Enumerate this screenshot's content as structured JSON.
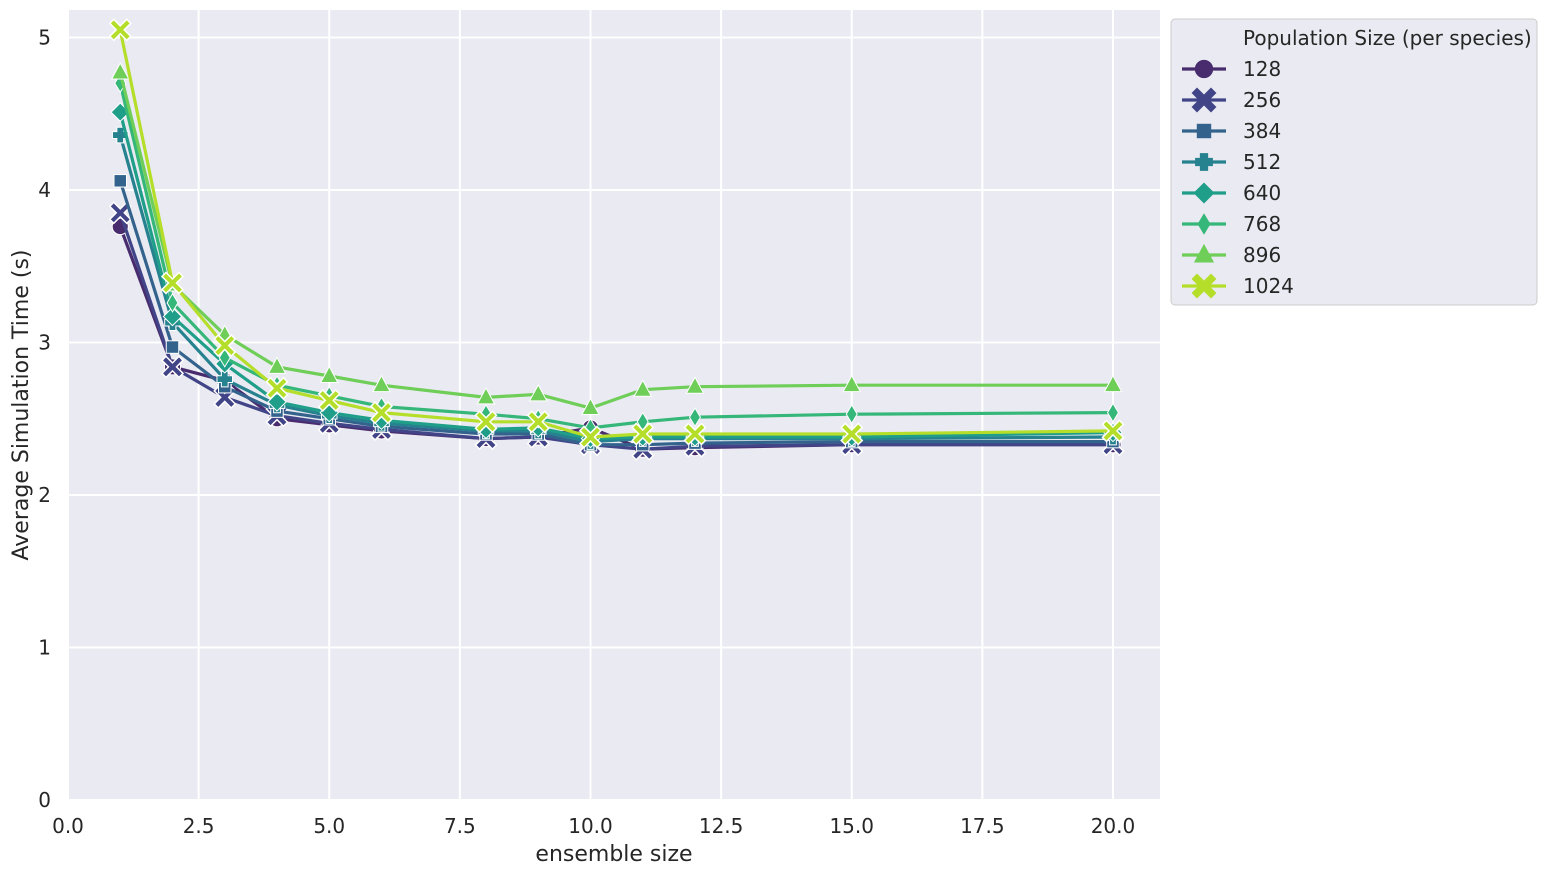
{
  "chart_data": {
    "type": "line",
    "title": "",
    "xlabel": "ensemble size",
    "ylabel": "Average Simulation Time (s)",
    "xlim": [
      0,
      20.9
    ],
    "ylim": [
      0,
      5.18
    ],
    "xticks": [
      0.0,
      2.5,
      5.0,
      7.5,
      10.0,
      12.5,
      15.0,
      17.5,
      20.0
    ],
    "xtick_labels": [
      "0.0",
      "2.5",
      "5.0",
      "7.5",
      "10.0",
      "12.5",
      "15.0",
      "17.5",
      "20.0"
    ],
    "yticks": [
      0,
      1,
      2,
      3,
      4,
      5
    ],
    "ytick_labels": [
      "0",
      "1",
      "2",
      "3",
      "4",
      "5"
    ],
    "grid": true,
    "legend_title": "Population Size (per species)",
    "legend_position": "outside-top-right",
    "x": [
      1,
      2,
      3,
      4,
      5,
      6,
      8,
      9,
      10,
      11,
      12,
      15,
      20
    ],
    "series": [
      {
        "name": "128",
        "color": "#482c6e",
        "marker": "circle",
        "values": [
          3.76,
          2.84,
          2.75,
          2.5,
          2.46,
          2.42,
          2.37,
          2.38,
          2.44,
          2.3,
          2.31,
          2.33,
          2.33
        ]
      },
      {
        "name": "256",
        "color": "#414487",
        "marker": "x",
        "values": [
          3.85,
          2.84,
          2.64,
          2.52,
          2.47,
          2.43,
          2.37,
          2.38,
          2.33,
          2.3,
          2.32,
          2.33,
          2.33
        ]
      },
      {
        "name": "384",
        "color": "#33638d",
        "marker": "square",
        "values": [
          4.06,
          2.97,
          2.71,
          2.55,
          2.5,
          2.45,
          2.4,
          2.4,
          2.33,
          2.33,
          2.34,
          2.35,
          2.35
        ]
      },
      {
        "name": "512",
        "color": "#26828e",
        "marker": "plus",
        "values": [
          4.36,
          3.13,
          2.76,
          2.59,
          2.52,
          2.47,
          2.42,
          2.42,
          2.35,
          2.37,
          2.37,
          2.37,
          2.38
        ]
      },
      {
        "name": "640",
        "color": "#1f9e89",
        "marker": "diamond",
        "values": [
          4.51,
          3.17,
          2.86,
          2.61,
          2.54,
          2.49,
          2.43,
          2.44,
          2.37,
          2.38,
          2.38,
          2.38,
          2.41
        ]
      },
      {
        "name": "768",
        "color": "#35b779",
        "marker": "thin-diamond",
        "values": [
          4.7,
          3.26,
          2.9,
          2.72,
          2.65,
          2.58,
          2.53,
          2.5,
          2.44,
          2.48,
          2.51,
          2.53,
          2.54
        ]
      },
      {
        "name": "896",
        "color": "#6ece58",
        "marker": "triangle",
        "values": [
          4.77,
          3.38,
          3.05,
          2.84,
          2.78,
          2.72,
          2.64,
          2.66,
          2.57,
          2.69,
          2.71,
          2.72,
          2.72
        ]
      },
      {
        "name": "1024",
        "color": "#b5de2b",
        "marker": "x",
        "values": [
          5.05,
          3.39,
          2.98,
          2.7,
          2.62,
          2.54,
          2.48,
          2.48,
          2.38,
          2.4,
          2.4,
          2.4,
          2.42
        ]
      }
    ]
  }
}
